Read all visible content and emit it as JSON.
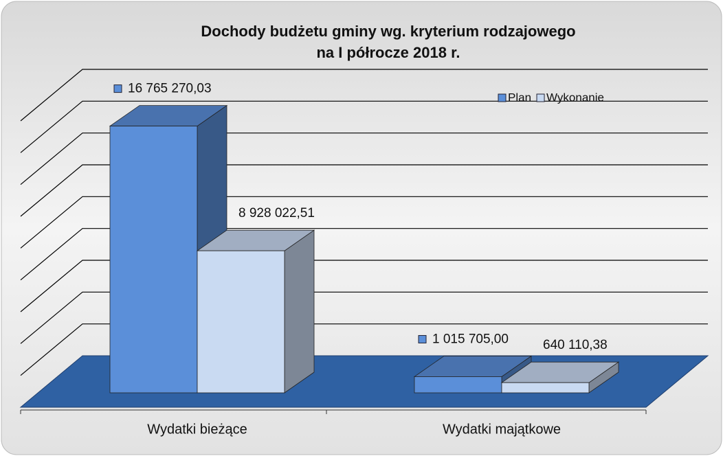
{
  "chart_data": {
    "type": "bar3d",
    "title": [
      "Dochody budżetu gminy wg. kryterium rodzajowego",
      "na I półrocze 2018 r."
    ],
    "categories": [
      "Wydatki bieżące",
      "Wydatki majątkowe"
    ],
    "series": [
      {
        "name": "Plan",
        "color": "#5b8fd9",
        "values": [
          16765270.03,
          1015705.0
        ],
        "value_labels": [
          "16 765 270,03",
          "1 015 705,00"
        ]
      },
      {
        "name": "Wykonanie",
        "color": "#c9daf2",
        "values": [
          8928022.51,
          640110.38
        ],
        "value_labels": [
          "8 928 022,51",
          "640 110,38"
        ]
      }
    ],
    "ylim": [
      0,
      18000000
    ],
    "yticks": [
      0,
      2000000,
      4000000,
      6000000,
      8000000,
      10000000,
      12000000,
      14000000,
      16000000,
      18000000
    ],
    "grid": true,
    "legend": "top-right"
  }
}
